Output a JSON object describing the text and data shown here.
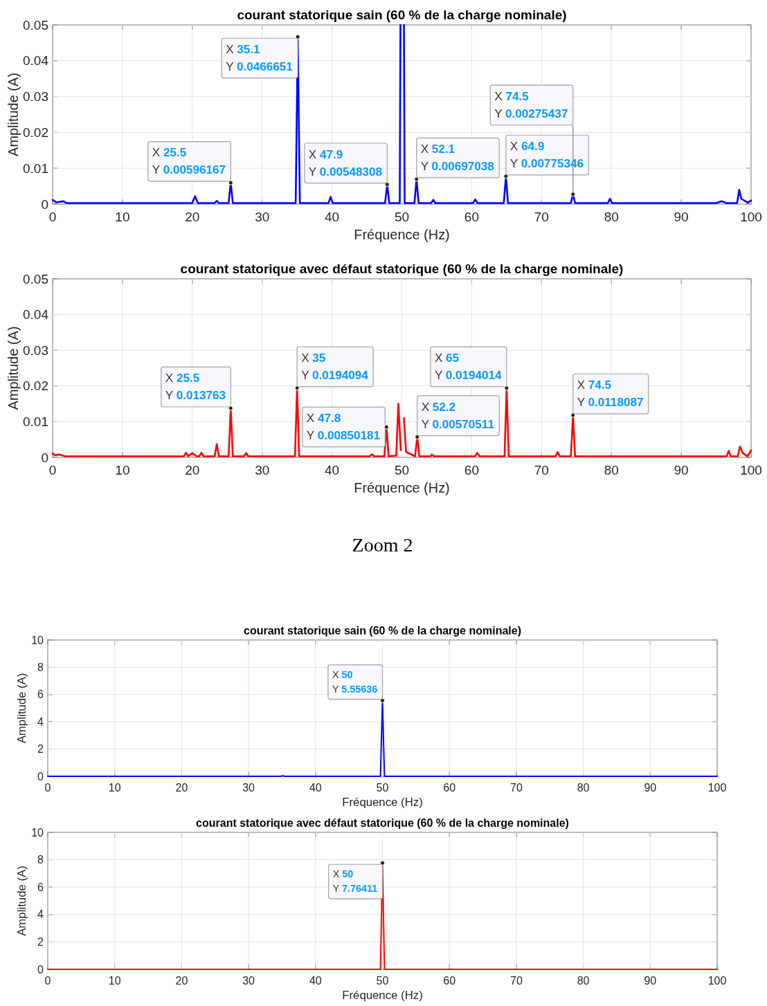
{
  "chart_data": [
    {
      "type": "line",
      "title": "courant statorique sain  (60 % de la charge nominale)",
      "xlabel": "Fréquence (Hz)",
      "ylabel": "Amplitude (A)",
      "x": [
        0,
        0.5,
        1.5,
        2,
        20,
        20.4,
        20.8,
        23.2,
        23.5,
        23.8,
        25.2,
        25.5,
        25.8,
        34.8,
        35.1,
        35.4,
        39.5,
        39.8,
        40.1,
        47.6,
        47.9,
        48.2,
        49.7,
        49.8,
        50,
        50.3,
        50.4,
        51.8,
        52.1,
        52.4,
        54.2,
        54.5,
        54.8,
        60.2,
        60.5,
        60.8,
        64.6,
        64.9,
        65.2,
        74.2,
        74.5,
        74.8,
        79.5,
        79.8,
        80.1,
        95,
        95.8,
        96.5,
        98,
        98.3,
        98.6,
        99.5,
        100
      ],
      "series": [
        {
          "color": "#0000ff",
          "values": [
            0.0012,
            0.0005,
            0.0008,
            0.0003,
            0.0003,
            0.0022,
            0.0003,
            0.0003,
            0.0009,
            0.0003,
            0.0003,
            0.00596167,
            0.0003,
            0.0003,
            0.0466651,
            0.0003,
            0.0003,
            0.002,
            0.0003,
            0.0003,
            0.00548308,
            0.0003,
            0.0003,
            0.05,
            null,
            0.05,
            0.0003,
            0.0003,
            0.00697038,
            0.0003,
            0.0003,
            0.0012,
            0.0003,
            0.0003,
            0.0013,
            0.0003,
            0.0003,
            0.00775346,
            0.0003,
            0.0003,
            0.00275437,
            0.0003,
            0.0003,
            0.0015,
            0.0003,
            0.0003,
            0.0008,
            0.0003,
            0.0003,
            0.004,
            0.0015,
            0.0004,
            0.001
          ]
        }
      ],
      "xlim": [
        0,
        100
      ],
      "ylim": [
        0,
        0.05
      ],
      "xticks": [
        0,
        10,
        20,
        30,
        40,
        50,
        60,
        70,
        80,
        90,
        100
      ],
      "yticks": [
        0,
        0.01,
        0.02,
        0.03,
        0.04,
        0.05
      ],
      "grid": true,
      "annotations": [
        {
          "text": "X 25.5\nY 0.00596167",
          "x": 25.5,
          "y": 0.00596167
        },
        {
          "text": "X 35.1\nY 0.0466651",
          "x": 35.1,
          "y": 0.0466651
        },
        {
          "text": "X 47.9\nY 0.00548308",
          "x": 47.9,
          "y": 0.00548308
        },
        {
          "text": "X 52.1\nY 0.00697038",
          "x": 52.1,
          "y": 0.00697038
        },
        {
          "text": "X 64.9\nY 0.00775346",
          "x": 64.9,
          "y": 0.00775346
        },
        {
          "text": "X 74.5\nY 0.00275437",
          "x": 74.5,
          "y": 0.00275437
        }
      ]
    },
    {
      "type": "line",
      "title": "courant statorique avec défaut statorique (60 % de la charge nominale)",
      "xlabel": "Fréquence (Hz)",
      "ylabel": "Amplitude (A)",
      "x": [
        0,
        0.3,
        1,
        1.8,
        18.8,
        19.1,
        19.4,
        20,
        20.6,
        21,
        21.3,
        21.6,
        23.2,
        23.5,
        23.8,
        25.2,
        25.5,
        25.8,
        27.4,
        27.7,
        28,
        34.7,
        35,
        35.3,
        45.4,
        45.7,
        46,
        47.5,
        47.8,
        48.1,
        49.2,
        49.5,
        49.85,
        50,
        50.3,
        50.6,
        51.9,
        52.2,
        52.5,
        54.1,
        54.3,
        54.6,
        60.5,
        60.8,
        61.1,
        64.7,
        65,
        65.3,
        72,
        72.3,
        72.6,
        74.2,
        74.5,
        74.8,
        96.5,
        96.8,
        97.1,
        98.1,
        98.4,
        98.8,
        99.5,
        100
      ],
      "series": [
        {
          "color": "#ff0000",
          "values": [
            0.0012,
            0.0006,
            0.0008,
            0.0003,
            0.0003,
            0.0013,
            0.0003,
            0.0012,
            0.0003,
            0.0003,
            0.0013,
            0.0003,
            0.0003,
            0.0037,
            0.0003,
            0.0003,
            0.013763,
            0.0003,
            0.0003,
            0.0012,
            0.0003,
            0.0003,
            0.0194094,
            0.0003,
            0.0003,
            0.0009,
            0.0003,
            0.0003,
            0.00850181,
            0.0003,
            0.0005,
            0.015,
            0.002,
            null,
            0.011,
            0.0015,
            0.0003,
            0.00570511,
            0.0003,
            0.0003,
            0.0008,
            0.0003,
            0.0003,
            0.0013,
            0.0003,
            0.0003,
            0.0194014,
            0.0003,
            0.0003,
            0.0015,
            0.0003,
            0.0003,
            0.0118087,
            0.0003,
            0.0003,
            0.0018,
            0.0003,
            0.0003,
            0.003,
            0.0012,
            0.0003,
            0.002
          ]
        }
      ],
      "xlim": [
        0,
        100
      ],
      "ylim": [
        0,
        0.05
      ],
      "xticks": [
        0,
        10,
        20,
        30,
        40,
        50,
        60,
        70,
        80,
        90,
        100
      ],
      "yticks": [
        0,
        0.01,
        0.02,
        0.03,
        0.04,
        0.05
      ],
      "grid": true,
      "annotations": [
        {
          "text": "X 25.5\nY 0.013763",
          "x": 25.5,
          "y": 0.013763
        },
        {
          "text": "X 35\nY 0.0194094",
          "x": 35,
          "y": 0.0194094
        },
        {
          "text": "X 47.8\nY 0.00850181",
          "x": 47.8,
          "y": 0.00850181
        },
        {
          "text": "X 52.2\nY 0.00570511",
          "x": 52.2,
          "y": 0.00570511
        },
        {
          "text": "X 65\nY 0.0194014",
          "x": 65,
          "y": 0.0194014
        },
        {
          "text": "X 74.5\nY 0.0118087",
          "x": 74.5,
          "y": 0.0118087
        }
      ]
    },
    {
      "type": "line",
      "title": "courant statorique sain  (60 % de la charge nominale)",
      "xlabel": "Fréquence (Hz)",
      "ylabel": "Amplitude (A)",
      "x": [
        0,
        34.8,
        35.1,
        35.4,
        49.7,
        50,
        50.3,
        100
      ],
      "series": [
        {
          "color": "#0000ff",
          "values": [
            0,
            0,
            0.0466651,
            0,
            0,
            5.55636,
            0,
            0
          ]
        }
      ],
      "xlim": [
        0,
        100
      ],
      "ylim": [
        0,
        10
      ],
      "xticks": [
        0,
        10,
        20,
        30,
        40,
        50,
        60,
        70,
        80,
        90,
        100
      ],
      "yticks": [
        0,
        2,
        4,
        6,
        8,
        10
      ],
      "grid": true,
      "annotations": [
        "Zoom 2",
        {
          "text": "X 50\nY 5.55636",
          "x": 50,
          "y": 5.55636
        }
      ]
    },
    {
      "type": "line",
      "title": "courant statorique avec défaut statorique (60 % de la charge nominale)",
      "xlabel": "Fréquence (Hz)",
      "ylabel": "Amplitude (A)",
      "x": [
        0,
        49.7,
        50,
        50.3,
        100
      ],
      "series": [
        {
          "color": "#ff0000",
          "values": [
            0,
            0,
            7.76411,
            0,
            0
          ]
        }
      ],
      "xlim": [
        0,
        100
      ],
      "ylim": [
        0,
        10
      ],
      "xticks": [
        0,
        10,
        20,
        30,
        40,
        50,
        60,
        70,
        80,
        90,
        100
      ],
      "yticks": [
        0,
        2,
        4,
        6,
        8,
        10
      ],
      "grid": true,
      "annotations": [
        {
          "text": "X 50\nY 7.76411",
          "x": 50,
          "y": 7.76411
        }
      ]
    }
  ]
}
